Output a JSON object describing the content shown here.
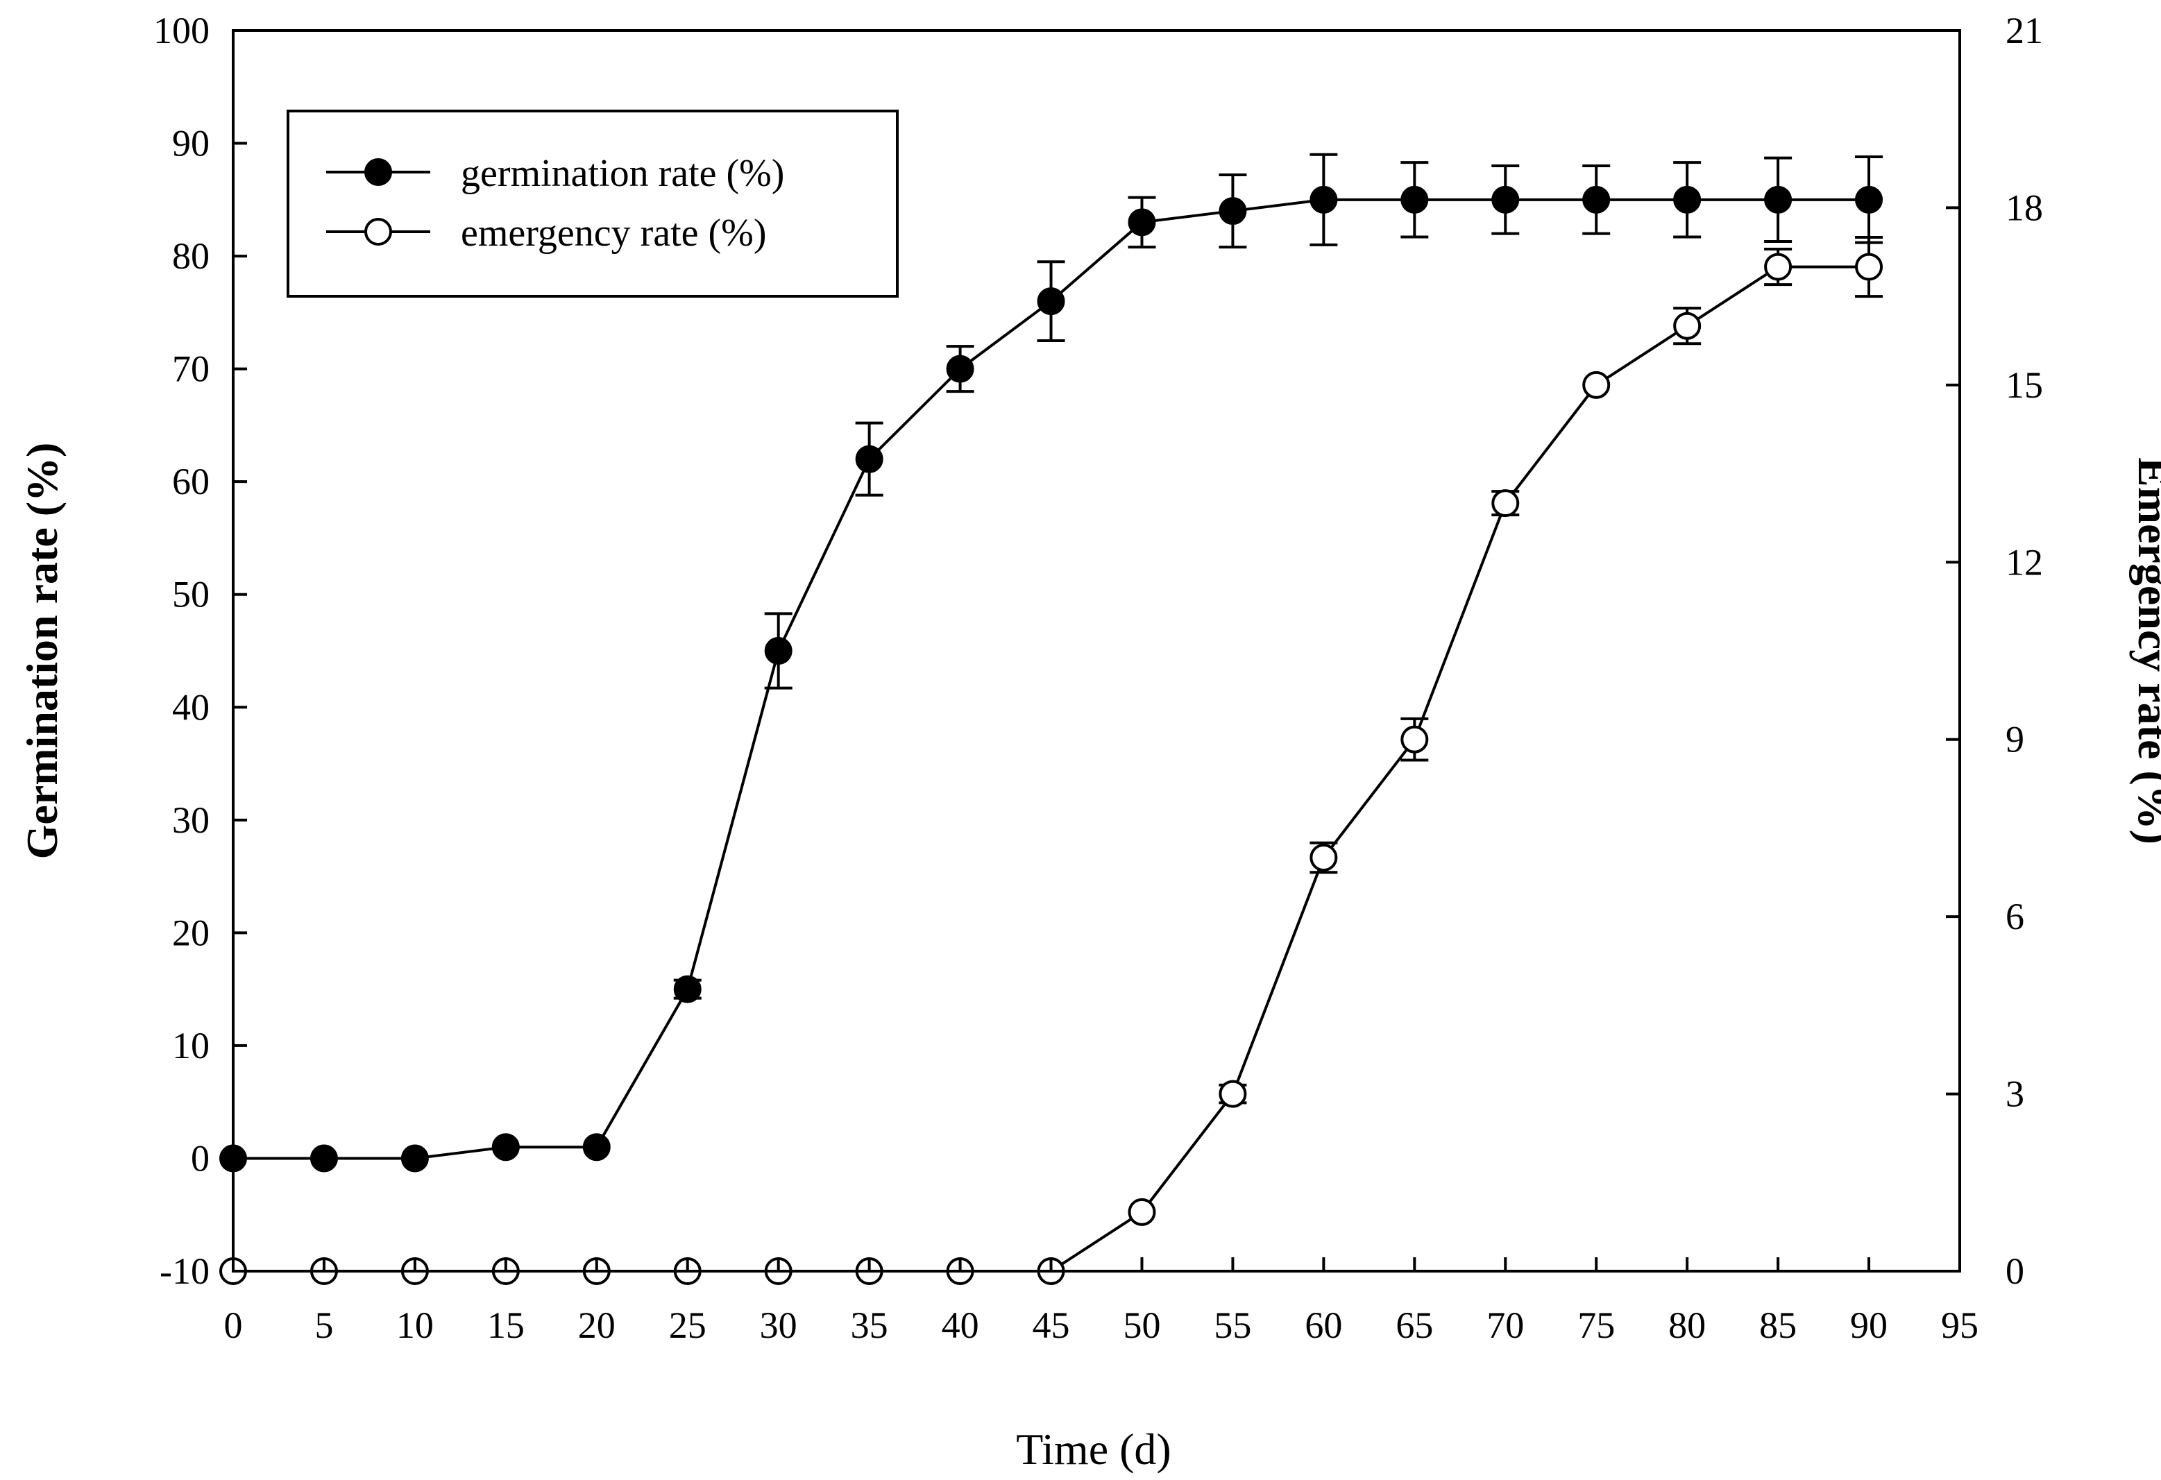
{
  "chart_data": {
    "type": "line",
    "title": "",
    "xlabel": "Time (d)",
    "ylabel_left": "Germination rate (%)",
    "ylabel_right": "Emergency rate (%)",
    "xlim": [
      0,
      95
    ],
    "ylim_left": [
      -10,
      100
    ],
    "ylim_right": [
      0,
      21
    ],
    "x_ticks": [
      0,
      5,
      10,
      15,
      20,
      25,
      30,
      35,
      40,
      45,
      50,
      55,
      60,
      65,
      70,
      75,
      80,
      85,
      90,
      95
    ],
    "y_left_ticks": [
      -10,
      0,
      10,
      20,
      30,
      40,
      50,
      60,
      70,
      80,
      90,
      100
    ],
    "y_right_ticks": [
      0,
      3,
      6,
      9,
      12,
      15,
      18,
      21
    ],
    "grid": false,
    "legend_position": "top-left",
    "series": [
      {
        "name": "germination rate (%)",
        "axis": "left",
        "marker": "filled-circle",
        "x": [
          0,
          5,
          10,
          15,
          20,
          25,
          30,
          35,
          40,
          45,
          50,
          55,
          60,
          65,
          70,
          75,
          80,
          85,
          90
        ],
        "values": [
          0,
          0,
          0,
          1,
          1,
          15,
          45,
          62,
          70,
          76,
          83,
          84,
          85,
          85,
          85,
          85,
          85,
          85,
          85
        ],
        "errors": [
          0,
          0,
          0,
          0,
          0,
          0.8,
          3.3,
          3.2,
          2.0,
          3.5,
          2.2,
          3.2,
          4.0,
          3.3,
          3.0,
          3.0,
          3.3,
          3.7,
          3.8
        ]
      },
      {
        "name": "emergency rate (%)",
        "axis": "right",
        "marker": "open-circle",
        "x": [
          0,
          5,
          10,
          15,
          20,
          25,
          30,
          35,
          40,
          45,
          50,
          55,
          60,
          65,
          70,
          75,
          80,
          85,
          90
        ],
        "values": [
          0,
          0,
          0,
          0,
          0,
          0,
          0,
          0,
          0,
          0,
          1,
          3,
          7,
          9,
          13,
          15,
          16,
          17,
          17
        ],
        "errors": [
          0,
          0,
          0,
          0,
          0,
          0,
          0,
          0,
          0,
          0,
          0,
          0.15,
          0.25,
          0.35,
          0.2,
          0,
          0.3,
          0.3,
          0.5
        ]
      }
    ]
  }
}
